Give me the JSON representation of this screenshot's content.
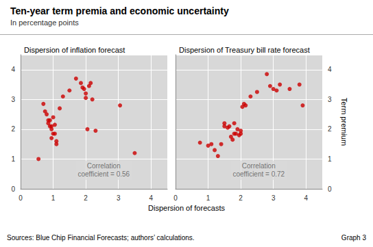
{
  "title": "Ten-year term premia and economic uncertainty",
  "subtitle": "In percentage points",
  "xlabel": "Dispersion of forecasts",
  "ylabel": "Term premium",
  "notes": [
    "Sources: Blue Chip Financial Forecasts; authors’ calculations.",
    "Graph 3"
  ],
  "chart_data": [
    {
      "type": "scatter",
      "title": "Dispersion of inflation forecast",
      "x": [
        0.55,
        0.7,
        0.75,
        0.8,
        0.85,
        0.85,
        0.9,
        0.9,
        0.95,
        0.95,
        0.95,
        1.0,
        1.0,
        1.05,
        1.05,
        1.1,
        1.1,
        1.2,
        1.3,
        1.5,
        1.7,
        1.85,
        1.9,
        1.95,
        2.0,
        2.0,
        2.05,
        2.1,
        2.15,
        2.2,
        2.3,
        3.05,
        3.5
      ],
      "values": [
        1.0,
        2.85,
        2.6,
        2.5,
        2.3,
        2.2,
        2.3,
        2.1,
        2.1,
        2.0,
        1.7,
        2.4,
        1.85,
        2.15,
        1.85,
        1.6,
        1.5,
        2.7,
        3.1,
        3.3,
        3.7,
        3.55,
        3.4,
        3.35,
        3.2,
        3.05,
        2.0,
        3.45,
        3.55,
        3.0,
        1.95,
        2.8,
        1.2
      ],
      "color": "#cc0000",
      "xlim": [
        0,
        4.5
      ],
      "ylim": [
        0,
        4.5
      ],
      "xticks": [
        0,
        1,
        2,
        3,
        4
      ],
      "yticks": [
        0,
        1,
        2,
        3,
        4
      ],
      "grid": true,
      "annotations": [
        {
          "text": "Correlation\ncoefficient = 0.56",
          "x": 2.55,
          "y": 0.62
        }
      ]
    },
    {
      "type": "scatter",
      "title": "Dispersion of Treasury bill rate forecast",
      "x": [
        0.75,
        1.0,
        1.1,
        1.2,
        1.3,
        1.4,
        1.5,
        1.5,
        1.6,
        1.65,
        1.7,
        1.75,
        1.8,
        1.8,
        1.85,
        1.9,
        1.95,
        2.0,
        2.0,
        2.05,
        2.1,
        2.15,
        2.3,
        2.5,
        2.8,
        2.9,
        3.0,
        3.1,
        3.2,
        3.5,
        3.8,
        3.9
      ],
      "values": [
        1.55,
        1.45,
        1.5,
        1.3,
        1.1,
        1.5,
        2.2,
        2.1,
        2.05,
        2.1,
        1.75,
        1.65,
        2.2,
        1.85,
        1.85,
        2.0,
        1.8,
        1.95,
        1.85,
        2.75,
        2.85,
        2.8,
        3.1,
        3.25,
        3.85,
        3.45,
        3.35,
        3.3,
        3.5,
        3.35,
        3.5,
        2.8
      ],
      "color": "#cc0000",
      "xlim": [
        0,
        4.5
      ],
      "ylim": [
        0,
        4.5
      ],
      "xticks": [
        0,
        1,
        2,
        3,
        4
      ],
      "yticks": [
        0,
        1,
        2,
        3,
        4
      ],
      "grid": true,
      "annotations": [
        {
          "text": "Correlation\ncoefficient = 0.72",
          "x": 2.55,
          "y": 0.62
        }
      ]
    }
  ]
}
